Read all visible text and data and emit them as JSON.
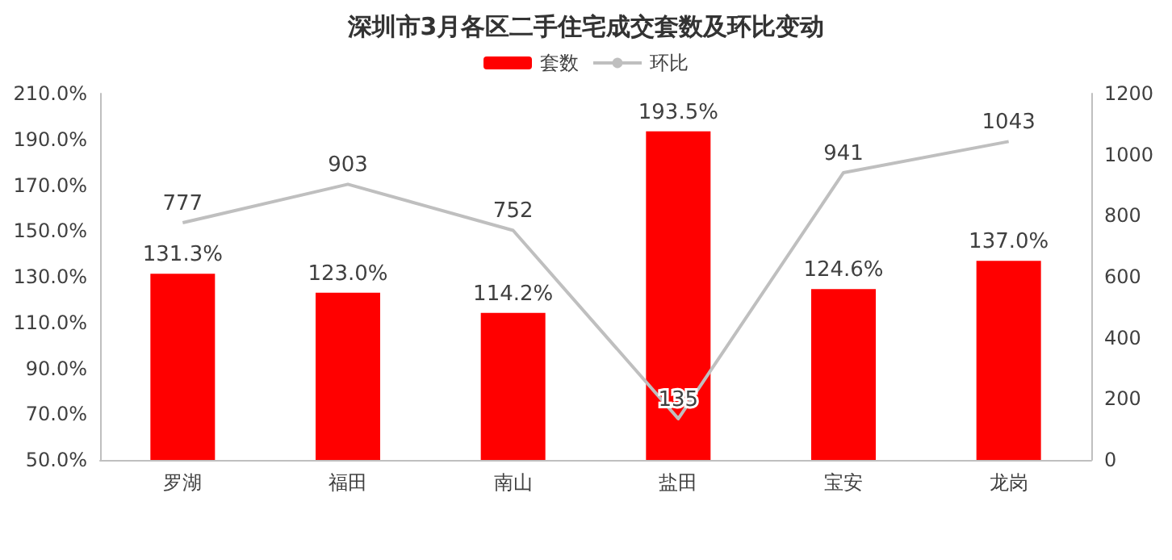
{
  "chart_data": {
    "type": "bar",
    "title": "深圳市3月各区二手住宅成交套数及环比变动",
    "categories": [
      "罗湖",
      "福田",
      "南山",
      "盐田",
      "宝安",
      "龙岗"
    ],
    "series": [
      {
        "name": "套数",
        "color": "#ff0000",
        "values": [
          131.3,
          123.0,
          114.2,
          193.5,
          124.6,
          137.0
        ],
        "value_labels": [
          "131.3%",
          "123.0%",
          "114.2%",
          "193.5%",
          "124.6%",
          "137.0%"
        ]
      },
      {
        "name": "环比",
        "type": "line",
        "axis": "y2",
        "color": "#bfbfbf",
        "values": [
          777,
          903,
          752,
          135,
          941,
          1043
        ],
        "value_labels": [
          "777",
          "903",
          "752",
          "135",
          "941",
          "1043"
        ]
      }
    ],
    "ylim": [
      50,
      210
    ],
    "yticks": [
      {
        "value": 50,
        "label": "50.0%"
      },
      {
        "value": 70,
        "label": "70.0%"
      },
      {
        "value": 90,
        "label": "90.0%"
      },
      {
        "value": 110,
        "label": "110.0%"
      },
      {
        "value": 130,
        "label": "130.0%"
      },
      {
        "value": 150,
        "label": "150.0%"
      },
      {
        "value": 170,
        "label": "170.0%"
      },
      {
        "value": 190,
        "label": "190.0%"
      },
      {
        "value": 210,
        "label": "210.0%"
      }
    ],
    "y2lim": [
      0,
      1200
    ],
    "y2ticks": [
      0,
      200,
      400,
      600,
      800,
      1000,
      1200
    ],
    "legend": "top",
    "grid": false,
    "marker": "none"
  }
}
